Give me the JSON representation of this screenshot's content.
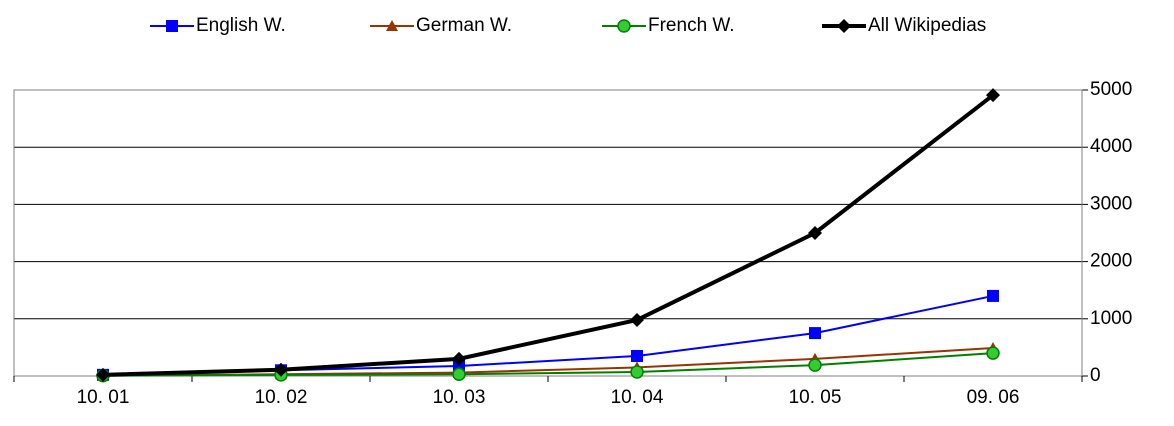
{
  "chart_data": {
    "type": "line",
    "categories": [
      "10. 01",
      "10. 02",
      "10. 03",
      "10. 04",
      "10. 05",
      "09. 06"
    ],
    "series": [
      {
        "name": "English W.",
        "color": "#0000ff",
        "marker": "square",
        "values": [
          20,
          100,
          175,
          350,
          750,
          1400
        ]
      },
      {
        "name": "German W.",
        "color": "#993300",
        "marker": "triangle",
        "values": [
          5,
          30,
          60,
          150,
          300,
          490
        ]
      },
      {
        "name": "French W.",
        "color": "#008000",
        "marker": "circle",
        "values": [
          5,
          20,
          30,
          70,
          190,
          400
        ]
      },
      {
        "name": "All Wikipedias",
        "color": "#000000",
        "marker": "diamond",
        "values": [
          20,
          110,
          300,
          980,
          2500,
          4910
        ]
      }
    ],
    "ylim": [
      0,
      5000
    ],
    "yticks": [
      0,
      1000,
      2000,
      3000,
      4000,
      5000
    ],
    "grid": true,
    "y_axis_side": "right",
    "legend": "top"
  }
}
